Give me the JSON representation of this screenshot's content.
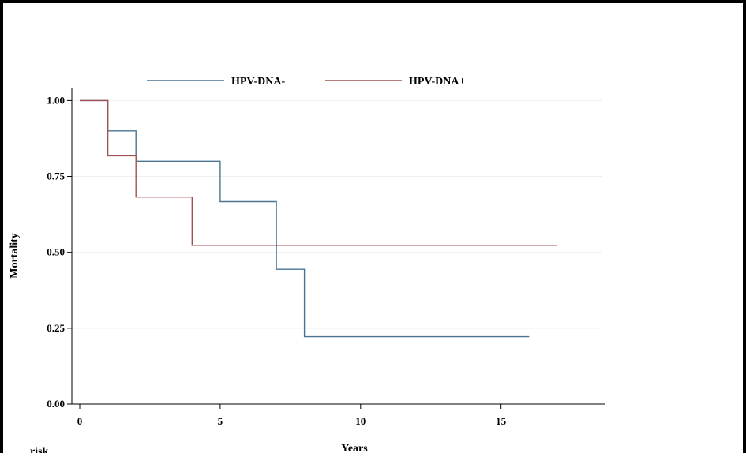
{
  "chart_data": {
    "type": "line",
    "step": true,
    "title": "",
    "xlabel": "Years",
    "ylabel": "Mortality",
    "xlim": [
      0,
      19
    ],
    "ylim": [
      0,
      1.04
    ],
    "xticks": [
      0,
      5,
      10,
      15
    ],
    "xtick_labels": [
      "0",
      "5",
      "10",
      "15"
    ],
    "yticks": [
      0,
      0.25,
      0.5,
      0.75,
      1.0
    ],
    "ytick_labels": [
      "0.00",
      "0.25",
      "0.50",
      "0.75",
      "1.00"
    ],
    "grid": "horizontal",
    "legend_position": "top",
    "cropped_text": "risk",
    "series": [
      {
        "name": "HPV-DNA-",
        "color": "#4a7494",
        "points": [
          [
            0,
            1.0
          ],
          [
            1,
            1.0
          ],
          [
            1,
            0.9
          ],
          [
            2,
            0.9
          ],
          [
            2,
            0.8
          ],
          [
            5,
            0.8
          ],
          [
            5,
            0.667
          ],
          [
            7,
            0.667
          ],
          [
            7,
            0.444
          ],
          [
            8,
            0.444
          ],
          [
            8,
            0.222
          ],
          [
            16,
            0.222
          ]
        ]
      },
      {
        "name": "HPV-DNA+",
        "color": "#a05050",
        "points": [
          [
            0,
            1.0
          ],
          [
            1,
            1.0
          ],
          [
            1,
            0.818
          ],
          [
            2,
            0.818
          ],
          [
            2,
            0.682
          ],
          [
            4,
            0.682
          ],
          [
            4,
            0.523
          ],
          [
            17,
            0.523
          ]
        ]
      }
    ]
  }
}
